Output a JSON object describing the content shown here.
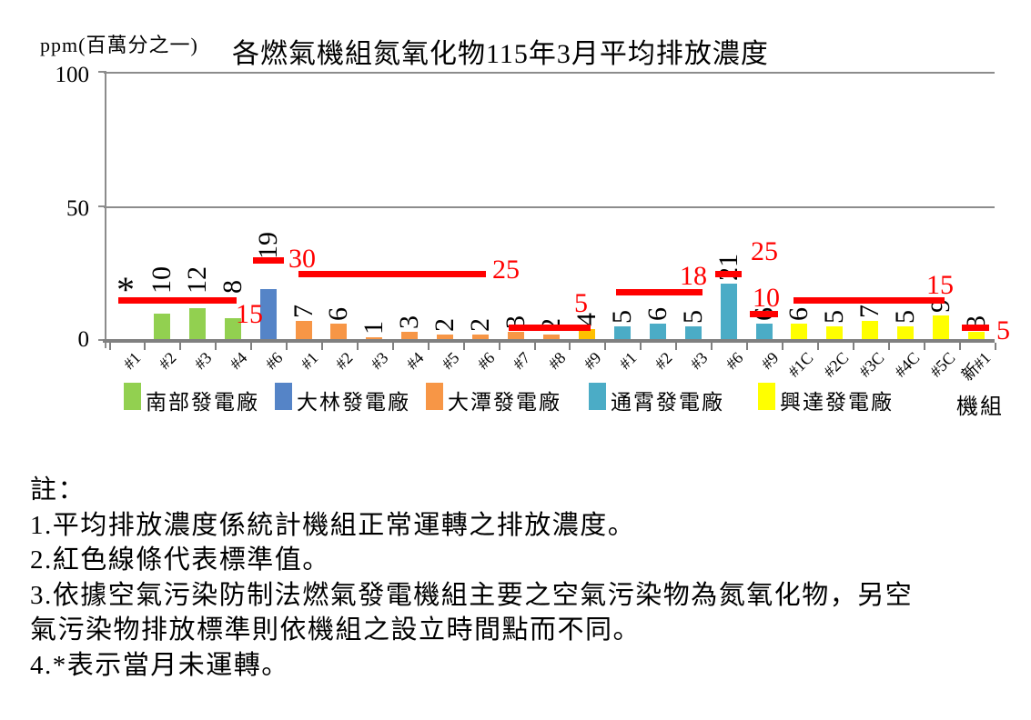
{
  "chart_data": {
    "type": "bar",
    "title": "各燃氣機組氮氧化物115年3月平均排放濃度",
    "ylabel": "ppm(百萬分之一)",
    "xlabel": "機組",
    "ylim": [
      0,
      100
    ],
    "y_tick_labels": [
      "100",
      "50",
      "0"
    ],
    "grid": "horizontal",
    "legend_position": "bottom",
    "bars": [
      {
        "unit": "#1",
        "plant": "南部發電廠",
        "value": null,
        "annotation": "*",
        "color": "#92D050"
      },
      {
        "unit": "#2",
        "plant": "南部發電廠",
        "value": 10,
        "color": "#92D050"
      },
      {
        "unit": "#3",
        "plant": "南部發電廠",
        "value": 12,
        "color": "#92D050"
      },
      {
        "unit": "#4",
        "plant": "南部發電廠",
        "value": 8,
        "color": "#92D050"
      },
      {
        "unit": "#6",
        "plant": "大林發電廠",
        "value": 19,
        "color": "#5584C7"
      },
      {
        "unit": "#1",
        "plant": "大潭發電廠",
        "value": 7,
        "color": "#F79646"
      },
      {
        "unit": "#2",
        "plant": "大潭發電廠",
        "value": 6,
        "color": "#F79646"
      },
      {
        "unit": "#3",
        "plant": "大潭發電廠",
        "value": 1,
        "color": "#F79646"
      },
      {
        "unit": "#4",
        "plant": "大潭發電廠",
        "value": 3,
        "color": "#F79646"
      },
      {
        "unit": "#5",
        "plant": "大潭發電廠",
        "value": 2,
        "color": "#F79646"
      },
      {
        "unit": "#6",
        "plant": "大潭發電廠",
        "value": 2,
        "color": "#F79646"
      },
      {
        "unit": "#7",
        "plant": "大潭發電廠",
        "value": 3,
        "color": "#F79646"
      },
      {
        "unit": "#8",
        "plant": "大潭發電廠",
        "value": 2,
        "color": "#F79646"
      },
      {
        "unit": "#9",
        "plant": "大潭發電廠",
        "value": 4,
        "color": "#FFC000"
      },
      {
        "unit": "#1",
        "plant": "通霄發電廠",
        "value": 5,
        "color": "#4BACC6"
      },
      {
        "unit": "#2",
        "plant": "通霄發電廠",
        "value": 6,
        "color": "#4BACC6"
      },
      {
        "unit": "#3",
        "plant": "通霄發電廠",
        "value": 5,
        "color": "#4BACC6"
      },
      {
        "unit": "#6",
        "plant": "通霄發電廠",
        "value": 21,
        "color": "#4BACC6"
      },
      {
        "unit": "#9",
        "plant": "通霄發電廠",
        "value": 6,
        "color": "#4BACC6"
      },
      {
        "unit": "#1C",
        "plant": "興達發電廠",
        "value": 6,
        "color": "#FFFF00"
      },
      {
        "unit": "#2C",
        "plant": "興達發電廠",
        "value": 5,
        "color": "#FFFF00"
      },
      {
        "unit": "#3C",
        "plant": "興達發電廠",
        "value": 7,
        "color": "#FFFF00"
      },
      {
        "unit": "#4C",
        "plant": "興達發電廠",
        "value": 5,
        "color": "#FFFF00"
      },
      {
        "unit": "#5C",
        "plant": "興達發電廠",
        "value": 9,
        "color": "#FFFF00"
      },
      {
        "unit": "新#1",
        "plant": "",
        "value": 3,
        "color": "#FFFF00"
      }
    ],
    "standard_lines": [
      {
        "value": 15,
        "label": "15",
        "from_bar": 0,
        "to_bar": 3,
        "color": "#FF0000"
      },
      {
        "value": 30,
        "label": "30",
        "from_bar": 4,
        "to_bar": 4,
        "color": "#FF0000"
      },
      {
        "value": 25,
        "label": "25",
        "from_bar": 5,
        "to_bar": 10,
        "color": "#FF0000"
      },
      {
        "value": 5,
        "label": "5",
        "from_bar": 11,
        "to_bar": 13,
        "color": "#FF0000"
      },
      {
        "value": 18,
        "label": "18",
        "from_bar": 14,
        "to_bar": 16,
        "color": "#FF0000"
      },
      {
        "value": 25,
        "label": "25",
        "from_bar": 17,
        "to_bar": 17,
        "color": "#FF0000"
      },
      {
        "value": 10,
        "label": "10",
        "from_bar": 18,
        "to_bar": 18,
        "color": "#FF0000"
      },
      {
        "value": 15,
        "label": "15",
        "from_bar": 19,
        "to_bar": 23,
        "color": "#FF0000"
      },
      {
        "value": 5,
        "label": "5",
        "from_bar": 24,
        "to_bar": 24,
        "color": "#FF0000"
      }
    ],
    "legend": [
      {
        "label": "南部發電廠",
        "color": "#92D050"
      },
      {
        "label": "大林發電廠",
        "color": "#5584C7"
      },
      {
        "label": "大潭發電廠",
        "color": "#F79646"
      },
      {
        "label": "通霄發電廠",
        "color": "#4BACC6"
      },
      {
        "label": "興達發電廠",
        "color": "#FFFF00"
      }
    ]
  },
  "notes": {
    "lines": [
      "註：",
      "1.平均排放濃度係統計機組正常運轉之排放濃度。",
      "2.紅色線條代表標準值。",
      "3.依據空氣污染防制法燃氣發電機組主要之空氣污染物為氮氧化物，另空",
      "氣污染物排放標準則依機組之設立時間點而不同。",
      "4.*表示當月未運轉。"
    ]
  }
}
